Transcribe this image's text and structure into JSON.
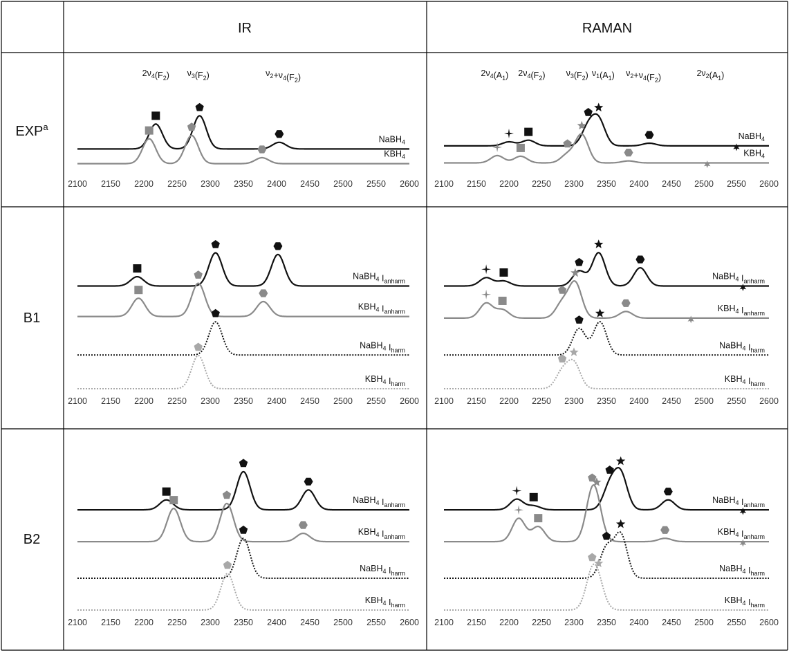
{
  "table": {
    "headers": [
      "",
      "IR",
      "RAMAN"
    ],
    "rows": [
      {
        "label_main": "EXP",
        "label_sup": "a"
      },
      {
        "label_main": "B1",
        "label_sup": ""
      },
      {
        "label_main": "B2",
        "label_sup": ""
      }
    ]
  },
  "x_ticks": [
    "2100",
    "2150",
    "2200",
    "2250",
    "2300",
    "2350",
    "2400",
    "2450",
    "2500",
    "2550",
    "2600"
  ],
  "colors": {
    "nabh4": "#111111",
    "kbh4": "#8a8a8a",
    "harm_kbh4": "#a8a8a8",
    "grid": "#000000"
  },
  "chart_data": [
    {
      "type": "line",
      "panel": "EXP-IR",
      "xlim": [
        2100,
        2600
      ],
      "annotations": [
        {
          "text": "2ν4(F2)",
          "x": 2218
        },
        {
          "text": "ν3(F2)",
          "x": 2282
        },
        {
          "text": "ν2+ν4(F2)",
          "x": 2410
        }
      ],
      "series": [
        {
          "name": "NaBH4",
          "style": "solid",
          "color": "black",
          "baseline": 0.78,
          "amp": 0.75,
          "peaks": [
            {
              "x": 2218,
              "h": 0.75,
              "marker": "square"
            },
            {
              "x": 2284,
              "h": 1.0,
              "marker": "pentagon"
            },
            {
              "x": 2404,
              "h": 0.2,
              "marker": "hexagon"
            }
          ]
        },
        {
          "name": "KBH4",
          "style": "solid",
          "color": "gray",
          "baseline": 0.97,
          "amp": 0.75,
          "peaks": [
            {
              "x": 2208,
              "h": 0.75,
              "marker": "square"
            },
            {
              "x": 2272,
              "h": 0.85,
              "marker": "pentagon"
            },
            {
              "x": 2378,
              "h": 0.18,
              "marker": "hexagon"
            }
          ]
        }
      ]
    },
    {
      "type": "line",
      "panel": "EXP-RAMAN",
      "xlim": [
        2100,
        2600
      ],
      "annotations": [
        {
          "text": "2ν4(A1)",
          "x": 2178
        },
        {
          "text": "2ν4(F2)",
          "x": 2235
        },
        {
          "text": "ν3(F2)",
          "x": 2305
        },
        {
          "text": "ν1(A1)",
          "x": 2345
        },
        {
          "text": "ν2+ν4(F2)",
          "x": 2407
        },
        {
          "text": "2ν2(A1)",
          "x": 2510
        }
      ],
      "series": [
        {
          "name": "NaBH4",
          "style": "solid",
          "color": "black",
          "baseline": 0.74,
          "amp": 0.8,
          "peaks": [
            {
              "x": 2200,
              "h": 0.12,
              "marker": "plus"
            },
            {
              "x": 2230,
              "h": 0.17,
              "marker": "square"
            },
            {
              "x": 2322,
              "h": 0.55,
              "marker": "pentagon"
            },
            {
              "x": 2338,
              "h": 0.75,
              "marker": "star"
            },
            {
              "x": 2416,
              "h": 0.08,
              "marker": "hexagon"
            },
            {
              "x": 2550,
              "h": 0.0,
              "marker": "asterisk"
            }
          ]
        },
        {
          "name": "KBH4",
          "style": "solid",
          "color": "gray",
          "baseline": 0.96,
          "amp": 0.8,
          "peaks": [
            {
              "x": 2182,
              "h": 0.22,
              "marker": "plus"
            },
            {
              "x": 2218,
              "h": 0.2,
              "marker": "square"
            },
            {
              "x": 2290,
              "h": 0.25,
              "marker": "pentagon"
            },
            {
              "x": 2312,
              "h": 0.85,
              "marker": "star"
            },
            {
              "x": 2384,
              "h": 0.06,
              "marker": "hexagon"
            },
            {
              "x": 2505,
              "h": 0.0,
              "marker": "asterisk"
            }
          ]
        }
      ]
    },
    {
      "type": "line",
      "panel": "B1-IR",
      "xlim": [
        2100,
        2600
      ],
      "series": [
        {
          "name": "NaBH4 Ianharm",
          "style": "solid",
          "color": "black",
          "baseline": 0.36,
          "amp": 0.36,
          "peaks": [
            {
              "x": 2190,
              "h": 0.28,
              "marker": "square"
            },
            {
              "x": 2308,
              "h": 1.0,
              "marker": "pentagon"
            },
            {
              "x": 2402,
              "h": 0.95,
              "marker": "hexagon"
            }
          ]
        },
        {
          "name": "KBH4 Ianharm",
          "style": "solid",
          "color": "gray",
          "baseline": 0.55,
          "amp": 0.36,
          "peaks": [
            {
              "x": 2192,
              "h": 0.55,
              "marker": "square"
            },
            {
              "x": 2282,
              "h": 1.0,
              "marker": "pentagon"
            },
            {
              "x": 2380,
              "h": 0.45,
              "marker": "hexagon"
            }
          ]
        },
        {
          "name": "NaBH4 Iharm",
          "style": "dotted",
          "color": "black",
          "baseline": 0.79,
          "amp": 0.36,
          "peaks": [
            {
              "x": 2308,
              "h": 1.0,
              "marker": "pentagon"
            }
          ]
        },
        {
          "name": "KBH4 Iharm",
          "style": "dotted",
          "color": "gray",
          "baseline": 1.0,
          "amp": 0.36,
          "peaks": [
            {
              "x": 2282,
              "h": 1.0,
              "marker": "pentagon"
            }
          ]
        }
      ]
    },
    {
      "type": "line",
      "panel": "B1-RAMAN",
      "xlim": [
        2100,
        2600
      ],
      "series": [
        {
          "name": "NaBH4 Ianharm",
          "style": "solid",
          "color": "black",
          "baseline": 0.36,
          "amp": 0.36,
          "peaks": [
            {
              "x": 2165,
              "h": 0.25,
              "marker": "plus"
            },
            {
              "x": 2192,
              "h": 0.15,
              "marker": "square"
            },
            {
              "x": 2308,
              "h": 0.45,
              "marker": "pentagon"
            },
            {
              "x": 2338,
              "h": 1.0,
              "marker": "star"
            },
            {
              "x": 2402,
              "h": 0.55,
              "marker": "hexagon"
            },
            {
              "x": 2560,
              "h": 0.0,
              "marker": "asterisk"
            }
          ]
        },
        {
          "name": "KBH4 Ianharm",
          "style": "solid",
          "color": "gray",
          "baseline": 0.56,
          "amp": 0.36,
          "peaks": [
            {
              "x": 2165,
              "h": 0.45,
              "marker": "plus"
            },
            {
              "x": 2190,
              "h": 0.25,
              "marker": "square"
            },
            {
              "x": 2282,
              "h": 0.45,
              "marker": "pentagon"
            },
            {
              "x": 2302,
              "h": 1.05,
              "marker": "star"
            },
            {
              "x": 2380,
              "h": 0.2,
              "marker": "hexagon"
            },
            {
              "x": 2480,
              "h": 0.0,
              "marker": "asterisk"
            }
          ]
        },
        {
          "name": "NaBH4 Iharm",
          "style": "dotted",
          "color": "black",
          "baseline": 0.79,
          "amp": 0.36,
          "peaks": [
            {
              "x": 2308,
              "h": 0.8,
              "marker": "pentagon"
            },
            {
              "x": 2340,
              "h": 1.0,
              "marker": "star"
            }
          ]
        },
        {
          "name": "KBH4 Iharm",
          "style": "dotted",
          "color": "gray",
          "baseline": 1.0,
          "amp": 0.36,
          "peaks": [
            {
              "x": 2282,
              "h": 0.5,
              "marker": "pentagon"
            },
            {
              "x": 2300,
              "h": 0.75,
              "marker": "star"
            }
          ]
        }
      ]
    },
    {
      "type": "line",
      "panel": "B2-IR",
      "xlim": [
        2100,
        2600
      ],
      "series": [
        {
          "name": "NaBH4 Ianharm",
          "style": "solid",
          "color": "black",
          "baseline": 0.37,
          "amp": 0.36,
          "peaks": [
            {
              "x": 2234,
              "h": 0.3,
              "marker": "square"
            },
            {
              "x": 2350,
              "h": 1.15,
              "marker": "pentagon"
            },
            {
              "x": 2448,
              "h": 0.6,
              "marker": "hexagon"
            }
          ]
        },
        {
          "name": "KBH4 Ianharm",
          "style": "solid",
          "color": "gray",
          "baseline": 0.57,
          "amp": 0.36,
          "peaks": [
            {
              "x": 2245,
              "h": 1.0,
              "marker": "square"
            },
            {
              "x": 2325,
              "h": 1.15,
              "marker": "pentagon"
            },
            {
              "x": 2440,
              "h": 0.25,
              "marker": "hexagon"
            }
          ]
        },
        {
          "name": "NaBH4 Iharm",
          "style": "dotted",
          "color": "black",
          "baseline": 0.8,
          "amp": 0.36,
          "peaks": [
            {
              "x": 2350,
              "h": 1.2,
              "marker": "pentagon"
            }
          ]
        },
        {
          "name": "KBH4 Iharm",
          "style": "dotted",
          "color": "gray",
          "baseline": 1.0,
          "amp": 0.36,
          "peaks": [
            {
              "x": 2326,
              "h": 1.1,
              "marker": "pentagon"
            }
          ]
        }
      ]
    },
    {
      "type": "line",
      "panel": "B2-RAMAN",
      "xlim": [
        2100,
        2600
      ],
      "series": [
        {
          "name": "NaBH4 Ianharm",
          "style": "solid",
          "color": "black",
          "baseline": 0.37,
          "amp": 0.36,
          "peaks": [
            {
              "x": 2212,
              "h": 0.32,
              "marker": "plus"
            },
            {
              "x": 2238,
              "h": 0.12,
              "marker": "square"
            },
            {
              "x": 2355,
              "h": 0.7,
              "marker": "pentagon"
            },
            {
              "x": 2372,
              "h": 1.05,
              "marker": "star"
            },
            {
              "x": 2445,
              "h": 0.3,
              "marker": "hexagon"
            },
            {
              "x": 2560,
              "h": 0.0,
              "marker": "asterisk"
            }
          ]
        },
        {
          "name": "KBH4 Ianharm",
          "style": "solid",
          "color": "gray",
          "baseline": 0.57,
          "amp": 0.36,
          "peaks": [
            {
              "x": 2215,
              "h": 0.7,
              "marker": "plus"
            },
            {
              "x": 2245,
              "h": 0.45,
              "marker": "square"
            },
            {
              "x": 2328,
              "h": 1.2,
              "marker": "pentagon"
            },
            {
              "x": 2335,
              "h": 0.6,
              "marker": "star"
            },
            {
              "x": 2440,
              "h": 0.1,
              "marker": "hexagon"
            },
            {
              "x": 2560,
              "h": 0.0,
              "marker": "asterisk"
            }
          ]
        },
        {
          "name": "NaBH4 Iharm",
          "style": "dotted",
          "color": "black",
          "baseline": 0.8,
          "amp": 0.36,
          "peaks": [
            {
              "x": 2350,
              "h": 0.9,
              "marker": "pentagon"
            },
            {
              "x": 2372,
              "h": 1.3,
              "marker": "star"
            }
          ]
        },
        {
          "name": "KBH4 Iharm",
          "style": "dotted",
          "color": "gray",
          "baseline": 1.0,
          "amp": 0.36,
          "peaks": [
            {
              "x": 2328,
              "h": 1.0,
              "marker": "pentagon"
            },
            {
              "x": 2338,
              "h": 0.55,
              "marker": "star"
            }
          ]
        }
      ]
    }
  ]
}
